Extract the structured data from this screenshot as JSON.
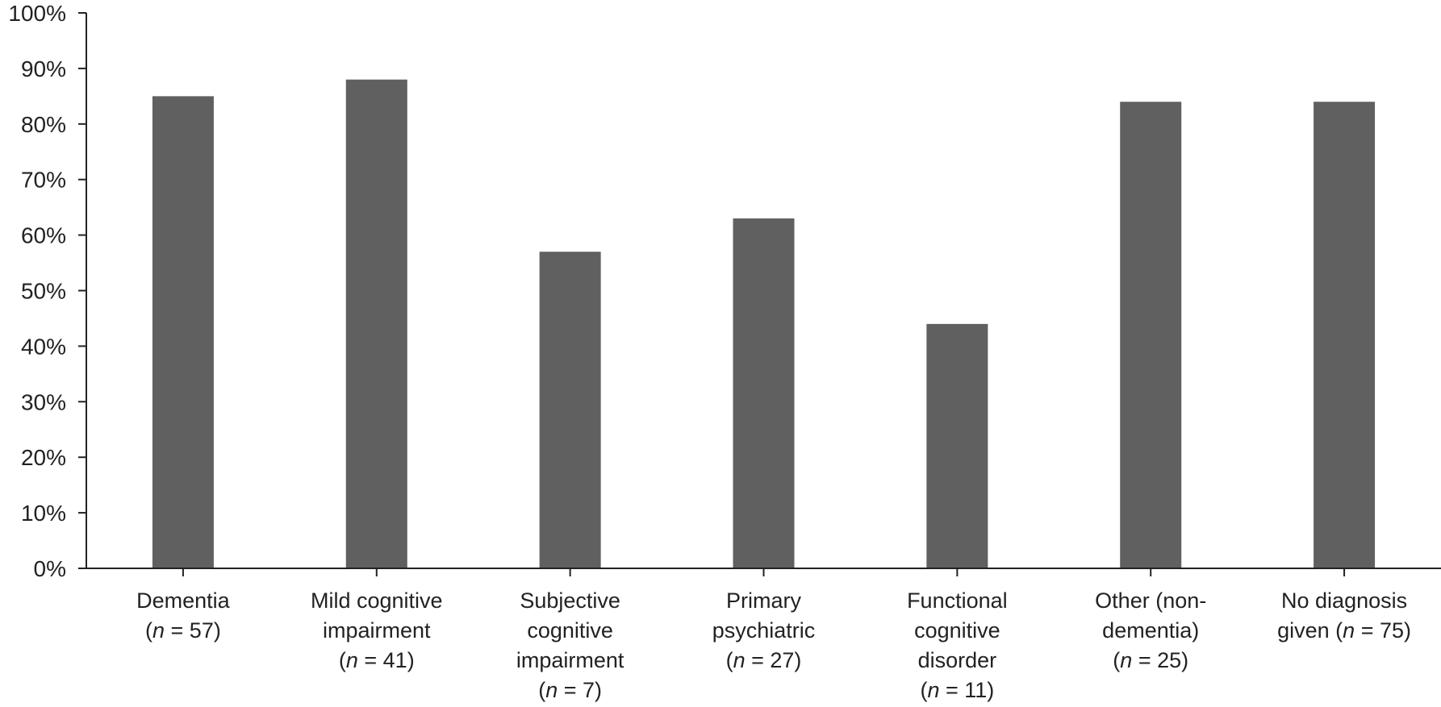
{
  "chart_data": {
    "type": "bar",
    "title": "",
    "xlabel": "",
    "ylabel": "",
    "ylim": [
      0,
      100
    ],
    "y_ticks": [
      "0%",
      "10%",
      "20%",
      "30%",
      "40%",
      "50%",
      "60%",
      "70%",
      "80%",
      "90%",
      "100%"
    ],
    "grid": false,
    "legend": "none",
    "bar_color": "#606060",
    "categories": [
      {
        "lines": [
          {
            "t": "Dementia"
          },
          {
            "pre": "(",
            "n": "n",
            "post": " = 57)"
          }
        ]
      },
      {
        "lines": [
          {
            "t": "Mild cognitive"
          },
          {
            "t": "impairment"
          },
          {
            "pre": "(",
            "n": "n",
            "post": " = 41)"
          }
        ]
      },
      {
        "lines": [
          {
            "t": "Subjective"
          },
          {
            "t": "cognitive"
          },
          {
            "t": "impairment"
          },
          {
            "pre": "(",
            "n": "n",
            "post": " = 7)"
          }
        ]
      },
      {
        "lines": [
          {
            "t": "Primary"
          },
          {
            "t": "psychiatric"
          },
          {
            "pre": "(",
            "n": "n",
            "post": " = 27)"
          }
        ]
      },
      {
        "lines": [
          {
            "t": "Functional"
          },
          {
            "t": "cognitive"
          },
          {
            "t": "disorder"
          },
          {
            "pre": "(",
            "n": "n",
            "post": " = 11)"
          }
        ]
      },
      {
        "lines": [
          {
            "t": "Other (non-"
          },
          {
            "t": "dementia)"
          },
          {
            "pre": "(",
            "n": "n",
            "post": " = 25)"
          }
        ]
      },
      {
        "lines": [
          {
            "t": "No diagnosis"
          },
          {
            "pre": "given (",
            "n": "n",
            "post": " = 75)"
          }
        ]
      }
    ],
    "values": [
      85,
      88,
      57,
      63,
      44,
      84,
      84
    ]
  }
}
